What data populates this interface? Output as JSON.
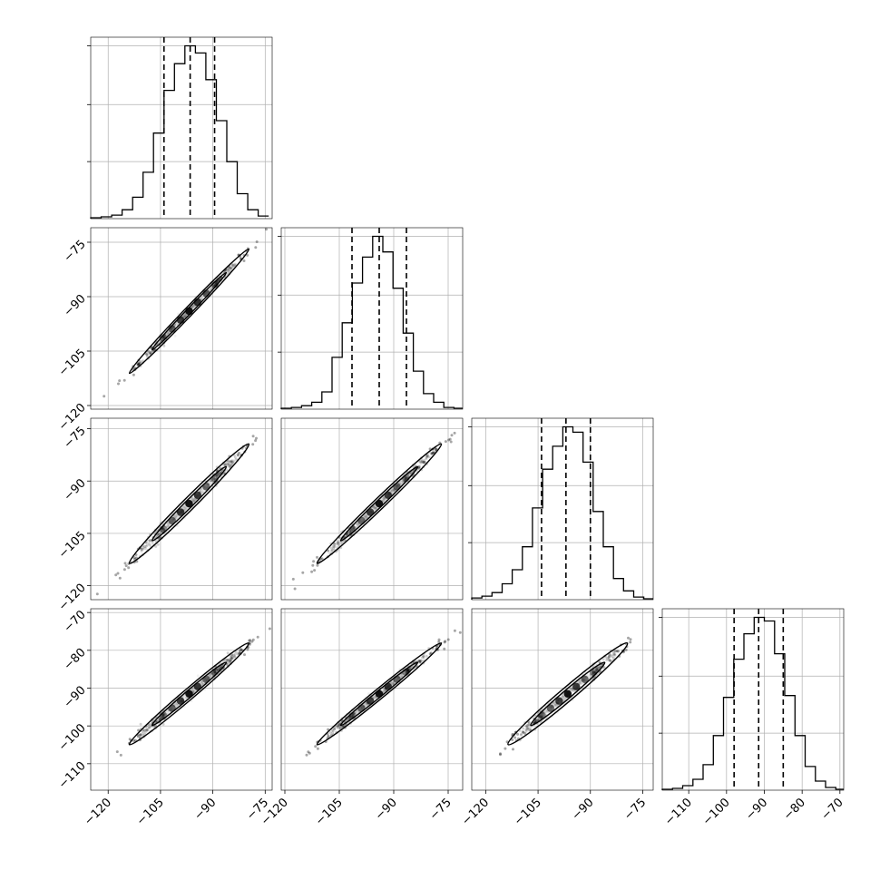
{
  "chart_data": {
    "type": "corner",
    "n_params": 4,
    "grid": true,
    "colors": {
      "line": "#000000",
      "grid": "#b0b0b0",
      "density": "#000000"
    },
    "params": [
      {
        "range": [
          -125,
          -73
        ],
        "ticks": [
          -120,
          -105,
          -90,
          -75
        ],
        "tick_labels": [
          "−120",
          "−105",
          "−90",
          "−75"
        ],
        "mean": -96.8,
        "sigma": 7.0,
        "quantiles": [
          -104,
          -96.5,
          -89.5
        ]
      },
      {
        "range": [
          -121,
          -71
        ],
        "ticks": [
          -120,
          -105,
          -90,
          -75
        ],
        "tick_labels": [
          "−120",
          "−105",
          "−90",
          "−75"
        ],
        "mean": -94.0,
        "sigma": 7.0,
        "quantiles": [
          -101.5,
          -94,
          -86.5
        ]
      },
      {
        "range": [
          -124,
          -72
        ],
        "ticks": [
          -120,
          -105,
          -90,
          -75
        ],
        "tick_labels": [
          "−120",
          "−105",
          "−90",
          "−75"
        ],
        "mean": -96.5,
        "sigma": 7.0,
        "quantiles": [
          -104,
          -97,
          -90
        ]
      },
      {
        "range": [
          -117,
          -69
        ],
        "ticks": [
          -110,
          -100,
          -90,
          -80,
          -70
        ],
        "tick_labels": [
          "−110",
          "−100",
          "−90",
          "−80",
          "−70"
        ],
        "mean": -91.5,
        "sigma": 5.5,
        "quantiles": [
          -98,
          -91.5,
          -85
        ]
      }
    ],
    "histograms": [
      {
        "param": 0,
        "bin_edges": [
          -125,
          -122,
          -119,
          -116,
          -113,
          -110,
          -107,
          -104,
          -101,
          -98,
          -95,
          -92,
          -89,
          -86,
          -83,
          -80,
          -77,
          -74
        ],
        "counts": [
          0.005,
          0.01,
          0.02,
          0.05,
          0.12,
          0.26,
          0.48,
          0.72,
          0.87,
          0.97,
          0.93,
          0.78,
          0.55,
          0.32,
          0.14,
          0.05,
          0.015
        ]
      },
      {
        "param": 1,
        "bin_edges": [
          -121,
          -118.2,
          -115.4,
          -112.6,
          -109.8,
          -107,
          -104.2,
          -101.4,
          -98.6,
          -95.8,
          -93,
          -90.2,
          -87.4,
          -84.6,
          -81.8,
          -79,
          -76.2,
          -73.4,
          -70.6
        ],
        "counts": [
          0.005,
          0.01,
          0.02,
          0.04,
          0.1,
          0.3,
          0.5,
          0.73,
          0.88,
          1.0,
          0.91,
          0.7,
          0.44,
          0.22,
          0.09,
          0.04,
          0.01,
          0.005
        ]
      },
      {
        "param": 2,
        "bin_edges": [
          -124,
          -121.1,
          -118.2,
          -115.3,
          -112.4,
          -109.5,
          -106.6,
          -103.7,
          -100.8,
          -97.9,
          -95,
          -92.1,
          -89.2,
          -86.3,
          -83.4,
          -80.5,
          -77.6,
          -74.7,
          -71.8
        ],
        "counts": [
          0.01,
          0.02,
          0.04,
          0.09,
          0.17,
          0.3,
          0.52,
          0.74,
          0.87,
          0.98,
          0.95,
          0.78,
          0.5,
          0.3,
          0.12,
          0.05,
          0.015,
          0.005
        ]
      },
      {
        "param": 3,
        "bin_edges": [
          -117,
          -114.3,
          -111.6,
          -108.9,
          -106.2,
          -103.5,
          -100.8,
          -98.1,
          -95.4,
          -92.7,
          -90,
          -87.3,
          -84.6,
          -81.9,
          -79.2,
          -76.5,
          -73.8,
          -71.1,
          -68.4
        ],
        "counts": [
          0.005,
          0.01,
          0.025,
          0.06,
          0.14,
          0.3,
          0.51,
          0.72,
          0.86,
          0.95,
          0.93,
          0.75,
          0.52,
          0.3,
          0.13,
          0.05,
          0.015,
          0.005
        ]
      }
    ],
    "pairs": [
      {
        "row": 1,
        "col": 0,
        "rho": 0.995
      },
      {
        "row": 2,
        "col": 0,
        "rho": 0.99
      },
      {
        "row": 2,
        "col": 1,
        "rho": 0.992
      },
      {
        "row": 3,
        "col": 0,
        "rho": 0.99
      },
      {
        "row": 3,
        "col": 1,
        "rho": 0.992
      },
      {
        "row": 3,
        "col": 2,
        "rho": 0.985
      }
    ]
  }
}
